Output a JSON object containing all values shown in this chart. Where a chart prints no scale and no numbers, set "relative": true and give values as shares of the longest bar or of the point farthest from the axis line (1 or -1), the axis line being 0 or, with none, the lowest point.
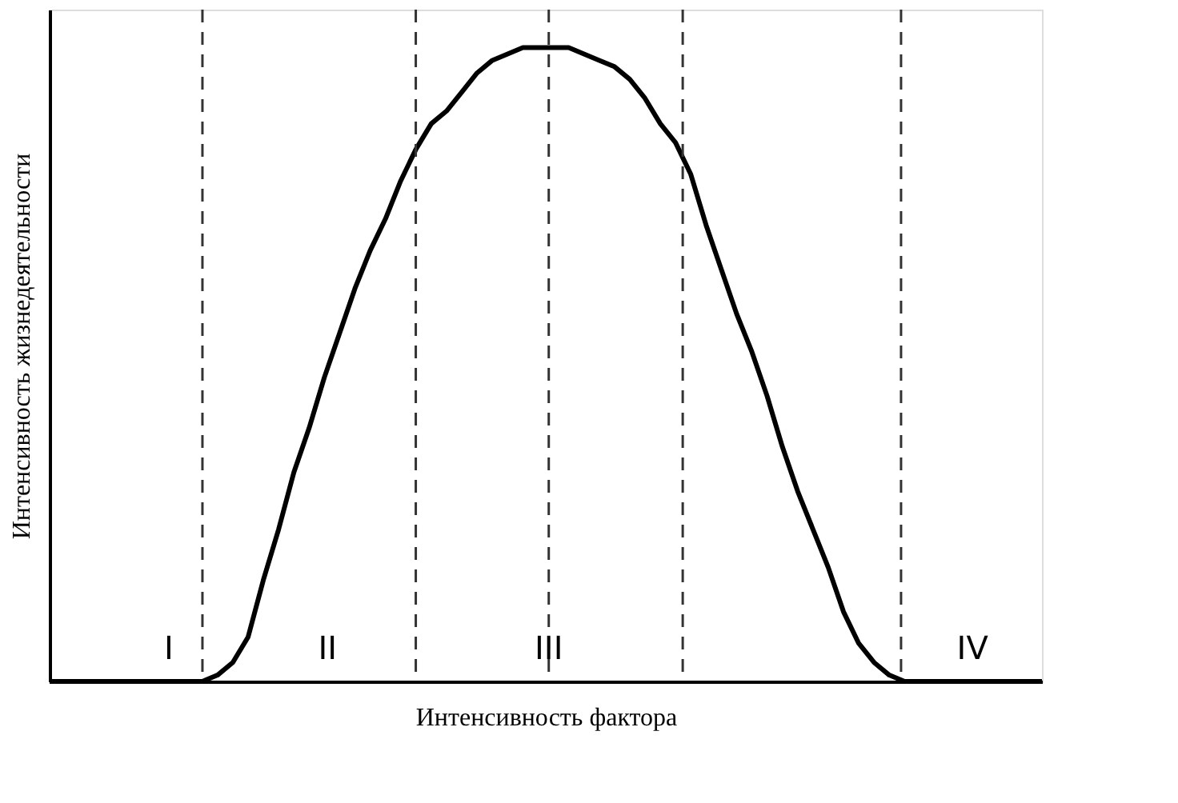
{
  "chart_data": {
    "type": "line",
    "relative": true,
    "xlabel": "Интенсивность фактора",
    "ylabel": "Интенсивность жизнедеятельности",
    "categories": [
      null,
      null,
      null,
      null,
      null,
      null,
      null,
      null,
      null,
      null,
      null,
      null,
      null,
      null,
      null,
      null,
      null,
      null,
      null,
      null,
      null,
      null,
      null,
      null,
      null,
      null,
      null,
      null,
      null,
      null,
      null,
      null,
      null,
      null,
      null,
      null,
      null,
      null,
      null,
      null,
      null,
      null,
      null,
      null,
      null,
      null,
      null,
      null,
      null,
      null,
      null,
      null,
      null,
      null,
      null,
      null,
      null,
      null,
      null,
      null,
      null,
      null,
      null,
      null,
      null,
      null
    ],
    "series": [
      {
        "color": "#000000",
        "values": [
          0,
          0,
          0,
          0,
          0,
          0,
          0,
          0,
          0,
          0,
          0,
          0.01,
          0.03,
          0.07,
          0.16,
          0.24,
          0.33,
          0.4,
          0.48,
          0.55,
          0.62,
          0.68,
          0.73,
          0.79,
          0.84,
          0.88,
          0.9,
          0.93,
          0.96,
          0.98,
          0.99,
          1.0,
          1.0,
          1.0,
          1.0,
          0.99,
          0.98,
          0.97,
          0.95,
          0.92,
          0.88,
          0.85,
          0.8,
          0.72,
          0.65,
          0.58,
          0.52,
          0.45,
          0.37,
          0.3,
          0.24,
          0.18,
          0.11,
          0.06,
          0.03,
          0.01,
          0,
          0,
          0,
          0,
          0,
          0,
          0,
          0,
          0,
          0
        ]
      }
    ],
    "annotations": [
      "I",
      "II",
      "III",
      "IV"
    ],
    "grid": false,
    "tick_labels": false,
    "marker": "none",
    "line_style": "solid"
  }
}
